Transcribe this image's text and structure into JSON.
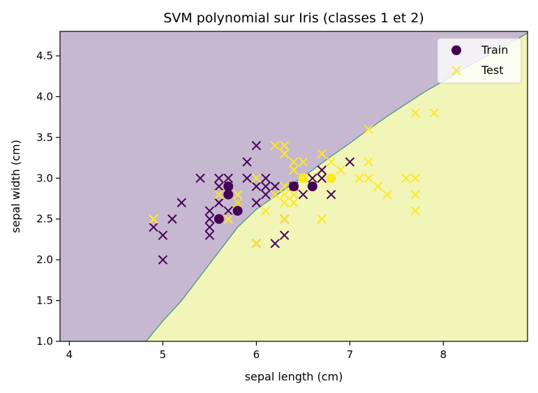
{
  "chart_data": {
    "type": "scatter",
    "title": "SVM polynomial sur Iris (classes 1 et 2)",
    "xlabel": "sepal length (cm)",
    "ylabel": "sepal width (cm)",
    "xlim": [
      3.9,
      8.9
    ],
    "ylim": [
      1.0,
      4.8
    ],
    "x_ticks": [
      "4",
      "5",
      "6",
      "7",
      "8"
    ],
    "y_ticks": [
      "1.0",
      "1.5",
      "2.0",
      "2.5",
      "3.0",
      "3.5",
      "4.0",
      "4.5"
    ],
    "grid": false,
    "legend_position": "top-right",
    "legend": [
      {
        "label": "Train",
        "marker": "circle"
      },
      {
        "label": "Test",
        "marker": "x"
      }
    ],
    "colors": {
      "class1": "#440154",
      "class2": "#fde725",
      "region_class1": "#c6b8d1",
      "region_class2": "#f1f5b8",
      "boundary": "#5a9e8a"
    },
    "decision_boundary": [
      [
        4.82,
        1.0
      ],
      [
        5.0,
        1.25
      ],
      [
        5.2,
        1.5
      ],
      [
        5.4,
        1.8
      ],
      [
        5.6,
        2.1
      ],
      [
        5.8,
        2.4
      ],
      [
        6.0,
        2.62
      ],
      [
        6.2,
        2.78
      ],
      [
        6.4,
        2.94
      ],
      [
        6.6,
        3.1
      ],
      [
        6.8,
        3.27
      ],
      [
        7.0,
        3.43
      ],
      [
        7.2,
        3.6
      ],
      [
        7.4,
        3.76
      ],
      [
        7.6,
        3.91
      ],
      [
        7.8,
        4.06
      ],
      [
        8.0,
        4.19
      ],
      [
        8.2,
        4.33
      ],
      [
        8.4,
        4.46
      ],
      [
        8.6,
        4.58
      ],
      [
        8.9,
        4.78
      ]
    ],
    "series": [
      {
        "name": "Train",
        "class": "class1",
        "marker": "circle",
        "points": [
          [
            5.6,
            2.5
          ],
          [
            5.7,
            2.8
          ],
          [
            5.7,
            2.9
          ],
          [
            5.8,
            2.6
          ],
          [
            6.4,
            2.9
          ],
          [
            6.6,
            2.9
          ]
        ]
      },
      {
        "name": "Train",
        "class": "class2",
        "marker": "circle",
        "points": [
          [
            6.5,
            3.0
          ],
          [
            6.8,
            3.0
          ]
        ]
      },
      {
        "name": "Test",
        "class": "class1",
        "marker": "x",
        "points": [
          [
            4.9,
            2.4
          ],
          [
            5.0,
            2.3
          ],
          [
            5.0,
            2.0
          ],
          [
            5.1,
            2.5
          ],
          [
            5.2,
            2.7
          ],
          [
            5.4,
            3.0
          ],
          [
            5.5,
            2.3
          ],
          [
            5.5,
            2.4
          ],
          [
            5.5,
            2.5
          ],
          [
            5.5,
            2.6
          ],
          [
            5.6,
            2.7
          ],
          [
            5.6,
            2.9
          ],
          [
            5.6,
            3.0
          ],
          [
            5.7,
            2.6
          ],
          [
            5.7,
            3.0
          ],
          [
            5.8,
            2.7
          ],
          [
            5.9,
            3.0
          ],
          [
            5.9,
            3.2
          ],
          [
            6.0,
            2.2
          ],
          [
            6.0,
            2.7
          ],
          [
            6.0,
            2.9
          ],
          [
            6.0,
            3.4
          ],
          [
            6.1,
            2.8
          ],
          [
            6.1,
            2.9
          ],
          [
            6.1,
            3.0
          ],
          [
            6.2,
            2.2
          ],
          [
            6.2,
            2.9
          ],
          [
            6.3,
            2.3
          ],
          [
            6.3,
            2.5
          ],
          [
            6.4,
            2.9
          ],
          [
            6.5,
            2.8
          ],
          [
            6.6,
            3.0
          ],
          [
            6.7,
            3.0
          ],
          [
            6.7,
            3.1
          ],
          [
            6.8,
            2.8
          ],
          [
            7.0,
            3.2
          ]
        ]
      },
      {
        "name": "Test",
        "class": "class2",
        "marker": "x",
        "points": [
          [
            4.9,
            2.5
          ],
          [
            5.6,
            2.8
          ],
          [
            5.7,
            2.5
          ],
          [
            5.8,
            2.7
          ],
          [
            5.8,
            2.8
          ],
          [
            6.0,
            2.2
          ],
          [
            6.0,
            3.0
          ],
          [
            6.1,
            2.6
          ],
          [
            6.2,
            2.8
          ],
          [
            6.2,
            3.4
          ],
          [
            6.3,
            2.5
          ],
          [
            6.3,
            2.7
          ],
          [
            6.3,
            2.8
          ],
          [
            6.3,
            2.9
          ],
          [
            6.3,
            3.3
          ],
          [
            6.3,
            3.4
          ],
          [
            6.4,
            2.7
          ],
          [
            6.4,
            2.8
          ],
          [
            6.4,
            3.1
          ],
          [
            6.4,
            3.2
          ],
          [
            6.5,
            3.0
          ],
          [
            6.5,
            3.2
          ],
          [
            6.7,
            2.5
          ],
          [
            6.7,
            3.3
          ],
          [
            6.8,
            3.2
          ],
          [
            6.9,
            3.1
          ],
          [
            7.1,
            3.0
          ],
          [
            7.2,
            3.0
          ],
          [
            7.2,
            3.2
          ],
          [
            7.2,
            3.6
          ],
          [
            7.3,
            2.9
          ],
          [
            7.4,
            2.8
          ],
          [
            7.6,
            3.0
          ],
          [
            7.7,
            2.6
          ],
          [
            7.7,
            2.8
          ],
          [
            7.7,
            3.0
          ],
          [
            7.7,
            3.8
          ],
          [
            7.9,
            3.8
          ]
        ]
      }
    ]
  }
}
